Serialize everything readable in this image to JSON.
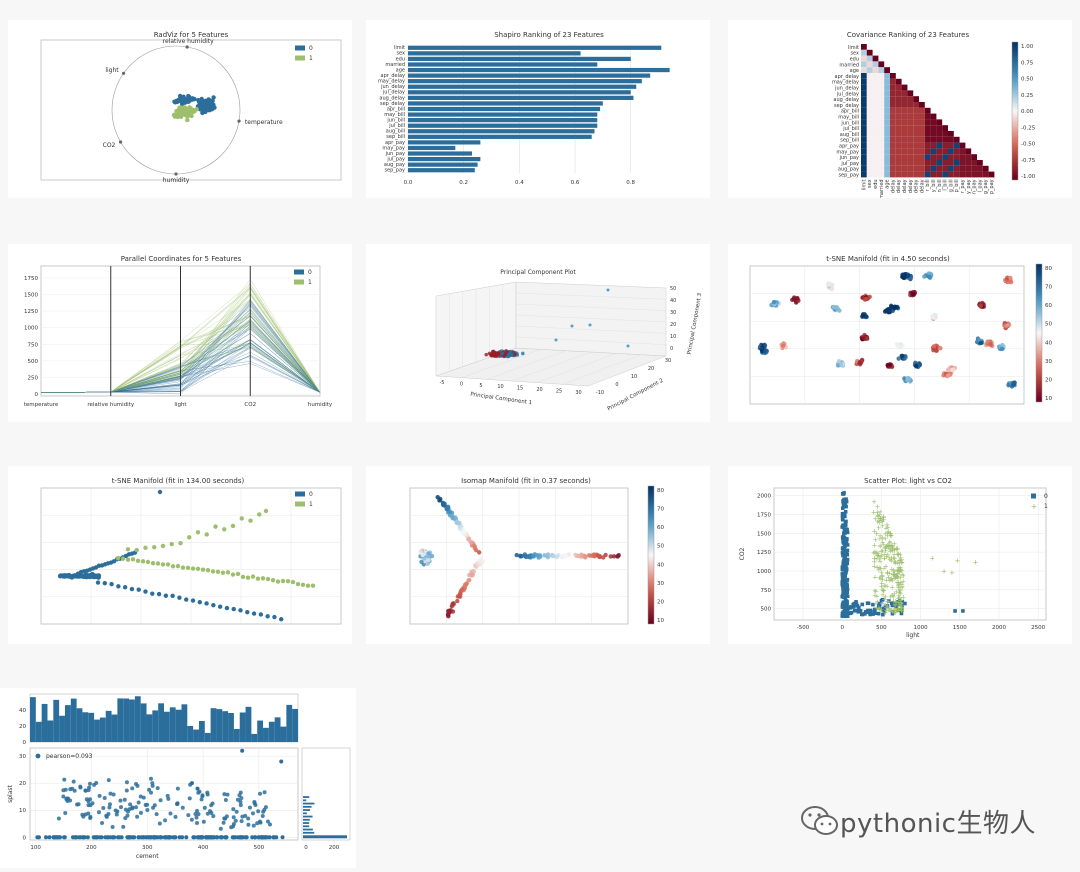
{
  "colors": {
    "blue": "#2c6e9b",
    "green": "#9dbf6d",
    "red": "#9b1c25",
    "grid": "#d9d9d9"
  },
  "watermark": {
    "text": "pythonic生物人",
    "icon": "wechat-icon"
  },
  "chart_data": [
    {
      "id": "radviz",
      "type": "scatter",
      "title": "RadViz for 5 Features",
      "features": [
        "relative humidity",
        "temperature",
        "humidity",
        "CO2",
        "light"
      ],
      "legend": [
        "0",
        "1"
      ],
      "legend_position": "top-right"
    },
    {
      "id": "shapiro",
      "type": "bar",
      "title": "Shapiro Ranking of 23 Features",
      "categories": [
        "limit",
        "sex",
        "edu",
        "married",
        "age",
        "apr_delay",
        "may_delay",
        "jun_delay",
        "jul_delay",
        "aug_delay",
        "sep_delay",
        "apr_bill",
        "may_bill",
        "jun_bill",
        "jul_bill",
        "aug_bill",
        "sep_bill",
        "apr_pay",
        "may_pay",
        "jun_pay",
        "jul_pay",
        "aug_pay",
        "sep_pay"
      ],
      "values": [
        0.91,
        0.62,
        0.8,
        0.68,
        0.94,
        0.87,
        0.84,
        0.82,
        0.8,
        0.81,
        0.7,
        0.69,
        0.68,
        0.68,
        0.68,
        0.67,
        0.66,
        0.26,
        0.17,
        0.23,
        0.26,
        0.25,
        0.24
      ],
      "xticks": [
        "0.0",
        "0.2",
        "0.4",
        "0.6",
        "0.8"
      ],
      "xlim": [
        0,
        0.97
      ]
    },
    {
      "id": "covariance",
      "type": "heatmap",
      "title": "Covariance Ranking of 23 Features",
      "labels": [
        "limit",
        "sex",
        "edu",
        "married",
        "age",
        "apr_delay",
        "may_delay",
        "jun_delay",
        "jul_delay",
        "aug_delay",
        "sep_delay",
        "apr_bill",
        "may_bill",
        "jun_bill",
        "jul_bill",
        "aug_bill",
        "sep_bill",
        "apr_pay",
        "may_pay",
        "jun_pay",
        "jul_pay",
        "aug_pay",
        "sep_pay"
      ],
      "x_tick_labels": [
        "limit",
        "sex",
        "edu",
        "married",
        "age",
        "delay",
        "delay",
        "delay",
        "delay",
        "delay",
        "delay",
        "r_bill",
        "y_bill",
        "n_bill",
        "l_bill",
        "g_bill",
        "p_bill",
        "r_pay",
        "y_pay",
        "n_pay",
        "l_pay",
        "g_pay",
        "p_pay"
      ],
      "colorbar_ticks": [
        "1.00",
        "0.75",
        "0.50",
        "0.25",
        "0.00",
        "-0.25",
        "-0.50",
        "-0.75",
        "-1.00"
      ]
    },
    {
      "id": "parallel",
      "type": "line",
      "title": "Parallel Coordinates for 5 Features",
      "categories": [
        "temperature",
        "relative humidity",
        "light",
        "CO2",
        "humidity"
      ],
      "yticks": [
        "0",
        "250",
        "500",
        "750",
        "1000",
        "1250",
        "1500",
        "1750"
      ],
      "legend": [
        "0",
        "1"
      ],
      "legend_position": "top-right"
    },
    {
      "id": "pca",
      "type": "scatter",
      "title": "Principal Component Plot",
      "xlabel": "Principal Component 1",
      "ylabel": "Principal Component 2",
      "zlabel": "Principal Component 3",
      "xticks": [
        "-5",
        "0",
        "5",
        "10",
        "15",
        "20",
        "25",
        "30"
      ],
      "yticks": [
        "-10",
        "0",
        "10",
        "20",
        "30"
      ],
      "zticks": [
        "0",
        "10",
        "20",
        "30",
        "40",
        "50"
      ]
    },
    {
      "id": "tsne1",
      "type": "scatter",
      "title": "t-SNE Manifold (fit in 4.50 seconds)",
      "colorbar_ticks": [
        "80",
        "70",
        "60",
        "50",
        "40",
        "30",
        "20",
        "10"
      ]
    },
    {
      "id": "tsne2",
      "type": "scatter",
      "title": "t-SNE Manifold (fit in 134.00 seconds)",
      "legend": [
        "0",
        "1"
      ],
      "legend_position": "top-right"
    },
    {
      "id": "isomap",
      "type": "scatter",
      "title": "Isomap Manifold (fit in 0.37 seconds)",
      "colorbar_ticks": [
        "80",
        "70",
        "60",
        "50",
        "40",
        "30",
        "20",
        "10"
      ]
    },
    {
      "id": "scatterlc",
      "type": "scatter",
      "title": "Scatter Plot: light vs CO2",
      "xlabel": "light",
      "ylabel": "CO2",
      "xticks": [
        "-500",
        "0",
        "500",
        "1000",
        "1500",
        "2000",
        "2500"
      ],
      "xlim": [
        -870,
        2600
      ],
      "yticks": [
        "500",
        "750",
        "1000",
        "1250",
        "1500",
        "1750",
        "2000"
      ],
      "ylim": [
        350,
        2100
      ],
      "legend": [
        "0",
        "1"
      ],
      "legend_position": "top-right"
    },
    {
      "id": "joint",
      "type": "scatter",
      "xlabel": "cement",
      "ylabel": "splast",
      "xticks": [
        "100",
        "200",
        "300",
        "400",
        "500"
      ],
      "xlim": [
        90,
        570
      ],
      "yticks": [
        "0",
        "10",
        "20",
        "30"
      ],
      "ylim": [
        -1,
        33
      ],
      "hist_yticks": [
        "0",
        "20",
        "40"
      ],
      "side_xticks": [
        "0",
        "200"
      ],
      "annotation": "pearson=0.093"
    }
  ]
}
